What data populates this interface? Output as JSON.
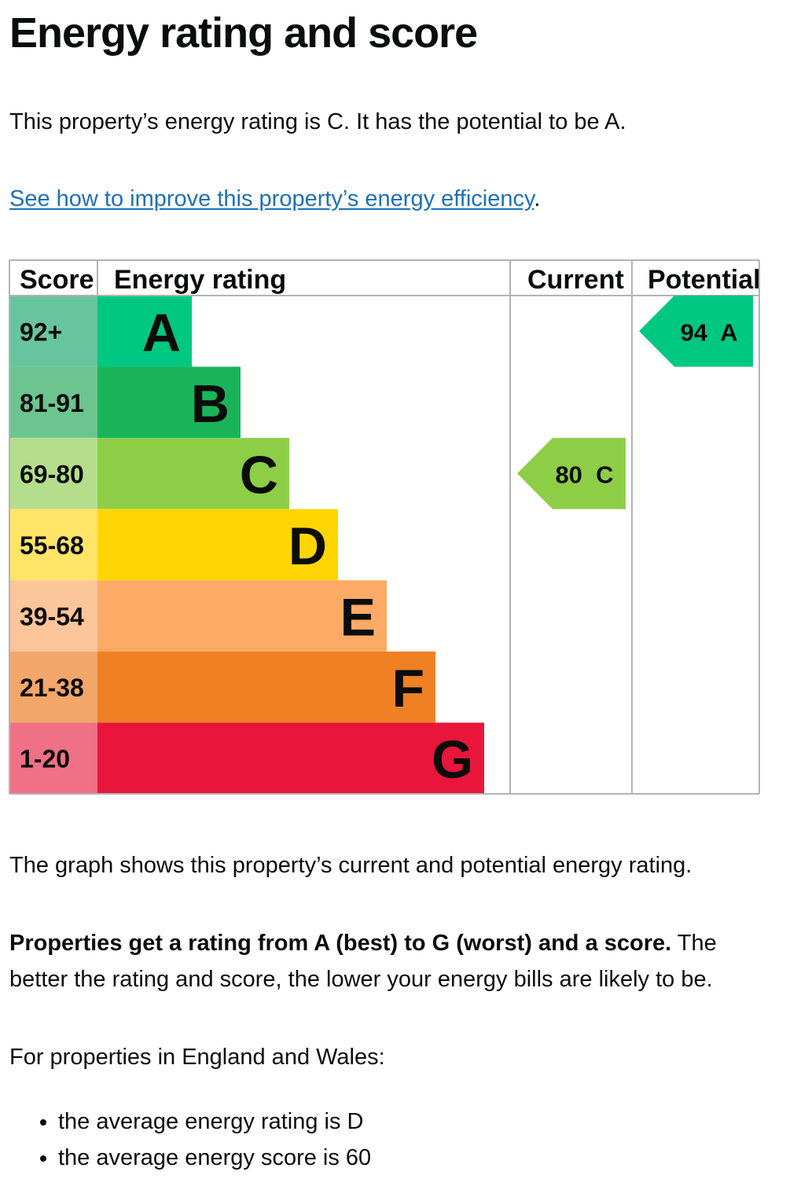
{
  "page": {
    "title": "Energy rating and score",
    "intro": "This property’s energy rating is C. It has the potential to be A.",
    "link_text": "See how to improve this property’s energy efficiency",
    "link_suffix": ".",
    "graph_note": "The graph shows this property’s current and potential energy rating.",
    "rating_bold": "Properties get a rating from A (best) to G (worst) and a score.",
    "rating_rest": " The better the rating and score, the lower your energy bills are likely to be.",
    "region_text": "For properties in England and Wales:",
    "bullets": [
      "the average energy rating is D",
      "the average energy score is 60"
    ]
  },
  "chart_data": {
    "type": "bar",
    "headers": {
      "score": "Score",
      "rating": "Energy rating",
      "current": "Current",
      "potential": "Potential"
    },
    "bands": [
      {
        "range": "92+",
        "letter": "A",
        "min": 92,
        "max": 100,
        "color": "#00c781",
        "score_bg": "#66c59e"
      },
      {
        "range": "81-91",
        "letter": "B",
        "min": 81,
        "max": 91,
        "color": "#19b459",
        "score_bg": "#6cc48f"
      },
      {
        "range": "69-80",
        "letter": "C",
        "min": 69,
        "max": 80,
        "color": "#8dce46",
        "score_bg": "#b5de8c"
      },
      {
        "range": "55-68",
        "letter": "D",
        "min": 55,
        "max": 68,
        "color": "#ffd500",
        "score_bg": "#ffe466"
      },
      {
        "range": "39-54",
        "letter": "E",
        "min": 39,
        "max": 54,
        "color": "#fcaa65",
        "score_bg": "#fdc59a"
      },
      {
        "range": "21-38",
        "letter": "F",
        "min": 21,
        "max": 38,
        "color": "#ef8023",
        "score_bg": "#f3a66a"
      },
      {
        "range": "1-20",
        "letter": "G",
        "min": 1,
        "max": 20,
        "color": "#e9153b",
        "score_bg": "#f07086"
      }
    ],
    "current": {
      "score": 80,
      "letter": "C",
      "label": "80  C"
    },
    "potential": {
      "score": 94,
      "letter": "A",
      "label": "94  A"
    }
  }
}
